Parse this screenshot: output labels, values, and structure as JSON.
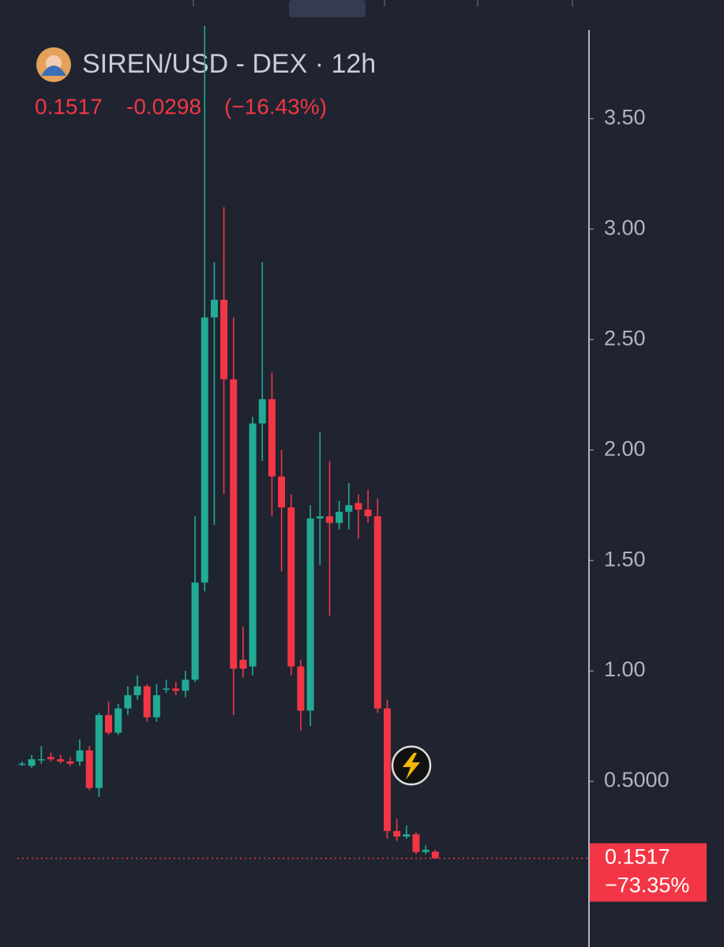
{
  "chart_data": {
    "type": "candlestick",
    "title": "SIREN/USD - DEX · 12h",
    "last_price": "0.1517",
    "change": "-0.0298",
    "change_percent": "(−16.43%)",
    "price_label": "0.1517",
    "price_change_label": "−73.35%",
    "up_color": "#22ab94",
    "down_color": "#f23645",
    "ylim": [
      -0.25,
      3.93
    ],
    "yticks": [
      {
        "value": 0.5,
        "label": "0.5000"
      },
      {
        "value": 1,
        "label": "1.00"
      },
      {
        "value": 1.5,
        "label": "1.50"
      },
      {
        "value": 2,
        "label": "2.00"
      },
      {
        "value": 2.5,
        "label": "2.50"
      },
      {
        "value": 3,
        "label": "3.00"
      },
      {
        "value": 3.5,
        "label": "3.50"
      }
    ],
    "open": [
      0.58,
      0.57,
      0.6,
      0.61,
      0.6,
      0.59,
      0.59,
      0.64,
      0.47,
      0.8,
      0.72,
      0.83,
      0.89,
      0.93,
      0.79,
      0.92,
      0.92,
      0.91,
      0.96,
      1.4,
      2.6,
      2.68,
      2.32,
      1.05,
      1.02,
      2.12,
      2.23,
      1.88,
      1.74,
      1.02,
      0.82,
      1.69,
      1.7,
      1.67,
      1.72,
      1.76,
      1.73,
      1.7,
      0.83,
      0.275,
      0.25,
      0.26,
      0.18,
      0.1815
    ],
    "high": [
      0.59,
      0.62,
      0.66,
      0.63,
      0.62,
      0.61,
      0.69,
      0.66,
      0.81,
      0.86,
      0.85,
      0.93,
      0.98,
      0.94,
      0.94,
      0.96,
      0.95,
      1.0,
      1.7,
      3.92,
      2.85,
      3.1,
      2.6,
      1.2,
      2.15,
      2.85,
      2.35,
      2.0,
      1.8,
      1.05,
      1.75,
      2.08,
      1.95,
      1.77,
      1.85,
      1.8,
      1.82,
      1.78,
      0.87,
      0.33,
      0.3,
      0.27,
      0.21,
      0.19
    ],
    "low": [
      0.57,
      0.56,
      0.58,
      0.59,
      0.58,
      0.57,
      0.57,
      0.46,
      0.43,
      0.71,
      0.71,
      0.8,
      0.87,
      0.77,
      0.77,
      0.9,
      0.89,
      0.88,
      0.95,
      1.36,
      1.66,
      1.8,
      0.8,
      0.97,
      0.98,
      1.95,
      1.7,
      1.45,
      0.98,
      0.73,
      0.75,
      1.48,
      1.25,
      1.64,
      1.64,
      1.6,
      1.67,
      0.81,
      0.24,
      0.23,
      0.24,
      0.17,
      0.17,
      0.15
    ],
    "close": [
      0.58,
      0.6,
      0.6,
      0.6,
      0.59,
      0.58,
      0.64,
      0.47,
      0.8,
      0.72,
      0.83,
      0.89,
      0.93,
      0.79,
      0.89,
      0.92,
      0.91,
      0.96,
      1.4,
      2.6,
      2.68,
      2.32,
      1.01,
      1.01,
      2.12,
      2.23,
      1.88,
      1.74,
      1.02,
      0.82,
      1.69,
      1.7,
      1.67,
      1.72,
      1.75,
      1.73,
      1.7,
      0.83,
      0.275,
      0.25,
      0.26,
      0.18,
      0.19,
      0.1517
    ]
  }
}
